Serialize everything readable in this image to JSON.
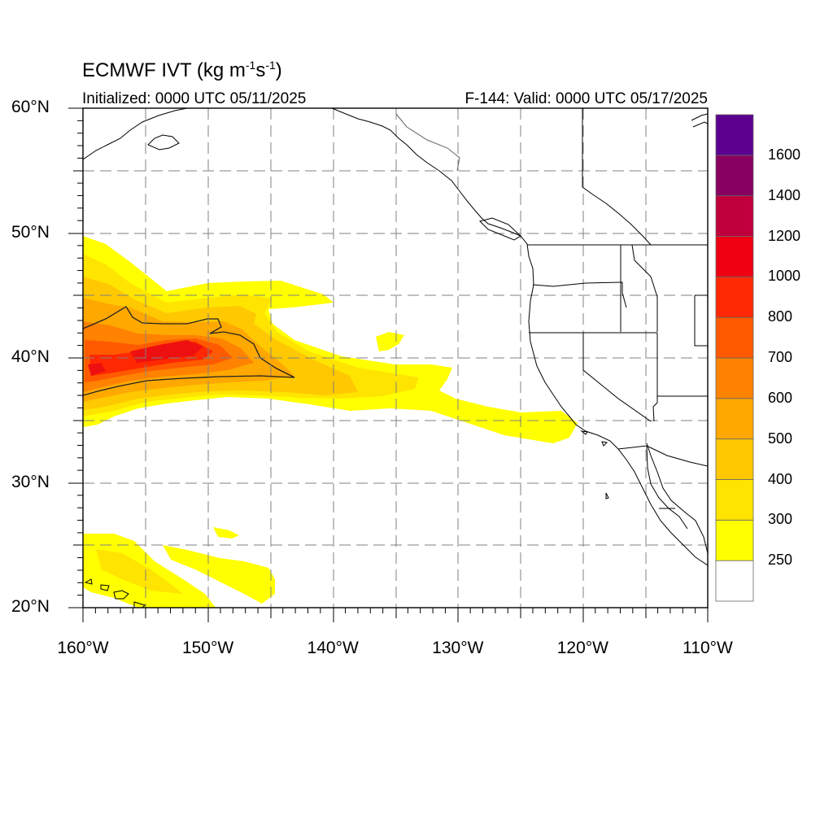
{
  "title": {
    "text_main": "ECMWF IVT (kg m",
    "exp1": "-1",
    "text_mid": "s",
    "exp2": "-1",
    "text_end": ")"
  },
  "subtitle_left": "Initialized: 0000 UTC 05/11/2025",
  "subtitle_right": "F-144: Valid: 0000 UTC 05/17/2025",
  "lat_labels": [
    {
      "value": 60,
      "label": "60°N"
    },
    {
      "value": 50,
      "label": "50°N"
    },
    {
      "value": 40,
      "label": "40°N"
    },
    {
      "value": 30,
      "label": "30°N"
    },
    {
      "value": 20,
      "label": "20°N"
    }
  ],
  "lon_labels": [
    {
      "value": -160,
      "label": "160°W"
    },
    {
      "value": -150,
      "label": "150°W"
    },
    {
      "value": -140,
      "label": "140°W"
    },
    {
      "value": -130,
      "label": "130°W"
    },
    {
      "value": -120,
      "label": "120°W"
    },
    {
      "value": -110,
      "label": "110°W"
    }
  ],
  "extent": {
    "lon_min": -160,
    "lon_max": -110,
    "lat_min": 20,
    "lat_max": 60
  },
  "colorbar": {
    "levels": [
      250,
      300,
      400,
      500,
      600,
      700,
      800,
      1000,
      1200,
      1400,
      1600
    ],
    "labels": [
      "250",
      "300",
      "400",
      "500",
      "600",
      "700",
      "800",
      "1000",
      "1200",
      "1400",
      "1600"
    ],
    "colors": [
      "#ffffff",
      "#ffff00",
      "#ffe400",
      "#ffc800",
      "#ffa800",
      "#ff8200",
      "#ff5a00",
      "#ff2800",
      "#ee0012",
      "#c0003c",
      "#880060",
      "#5c0090"
    ]
  },
  "colors": {
    "frame": "#000000",
    "grid": "#808080",
    "coast": "#000000",
    "border": "#000000"
  }
}
